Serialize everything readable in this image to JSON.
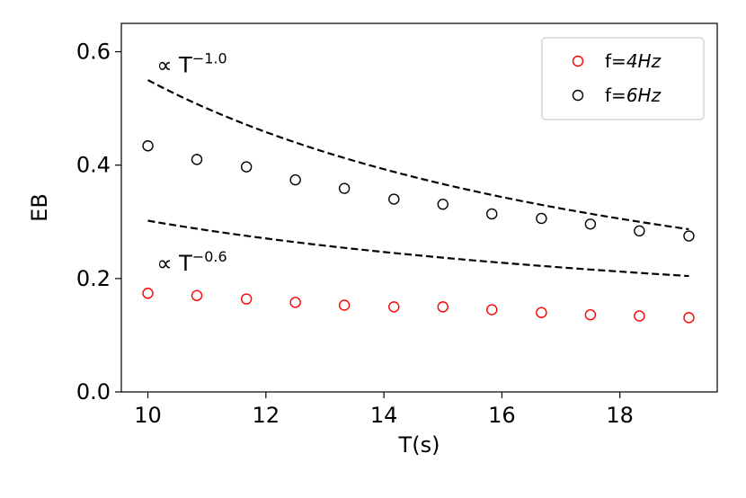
{
  "chart_data": {
    "type": "scatter",
    "title": "",
    "xlabel": "T(s)",
    "ylabel": "EB",
    "xlim": [
      9.55,
      19.65
    ],
    "ylim": [
      0.0,
      0.65
    ],
    "xticks": [
      10,
      12,
      14,
      16,
      18
    ],
    "xtick_labels": [
      "10",
      "12",
      "14",
      "16",
      "18"
    ],
    "yticks": [
      0.0,
      0.2,
      0.4,
      0.6
    ],
    "ytick_labels": [
      "0.0",
      "0.2",
      "0.4",
      "0.6"
    ],
    "grid": false,
    "legend_position": "top-right",
    "series": [
      {
        "name": "f=4Hz",
        "label_plain": "f=",
        "label_math": "4Hz",
        "color": "#ff0000",
        "marker": "open-circle",
        "x": [
          10.0,
          10.83,
          11.67,
          12.5,
          13.33,
          14.17,
          15.0,
          15.83,
          16.67,
          17.5,
          18.33,
          19.17
        ],
        "y": [
          0.174,
          0.17,
          0.164,
          0.158,
          0.153,
          0.15,
          0.15,
          0.145,
          0.14,
          0.136,
          0.134,
          0.131
        ]
      },
      {
        "name": "f=6Hz",
        "label_plain": "f=",
        "label_math": "6Hz",
        "color": "#000000",
        "marker": "open-circle",
        "x": [
          10.0,
          10.83,
          11.67,
          12.5,
          13.33,
          14.17,
          15.0,
          15.83,
          16.67,
          17.5,
          18.33,
          19.17
        ],
        "y": [
          0.434,
          0.41,
          0.397,
          0.374,
          0.359,
          0.34,
          0.331,
          0.314,
          0.306,
          0.296,
          0.284,
          0.275
        ]
      }
    ],
    "reference_lines": [
      {
        "name": "T^-1.0",
        "style": "dashed",
        "color": "#000000",
        "x_start": 10.0,
        "x_end": 19.17,
        "y_at_start": 0.55,
        "exponent": -1.0,
        "label_prefix": "∝ T",
        "label_exponent": "−1.0",
        "label_anchor_x": 10.15,
        "label_anchor_y": 0.578
      },
      {
        "name": "T^-0.6",
        "style": "dashed",
        "color": "#000000",
        "x_start": 10.0,
        "x_end": 19.17,
        "y_at_start": 0.302,
        "exponent": -0.6,
        "label_prefix": "∝ T",
        "label_exponent": "−0.6",
        "label_anchor_x": 10.15,
        "label_anchor_y": 0.228
      }
    ]
  }
}
